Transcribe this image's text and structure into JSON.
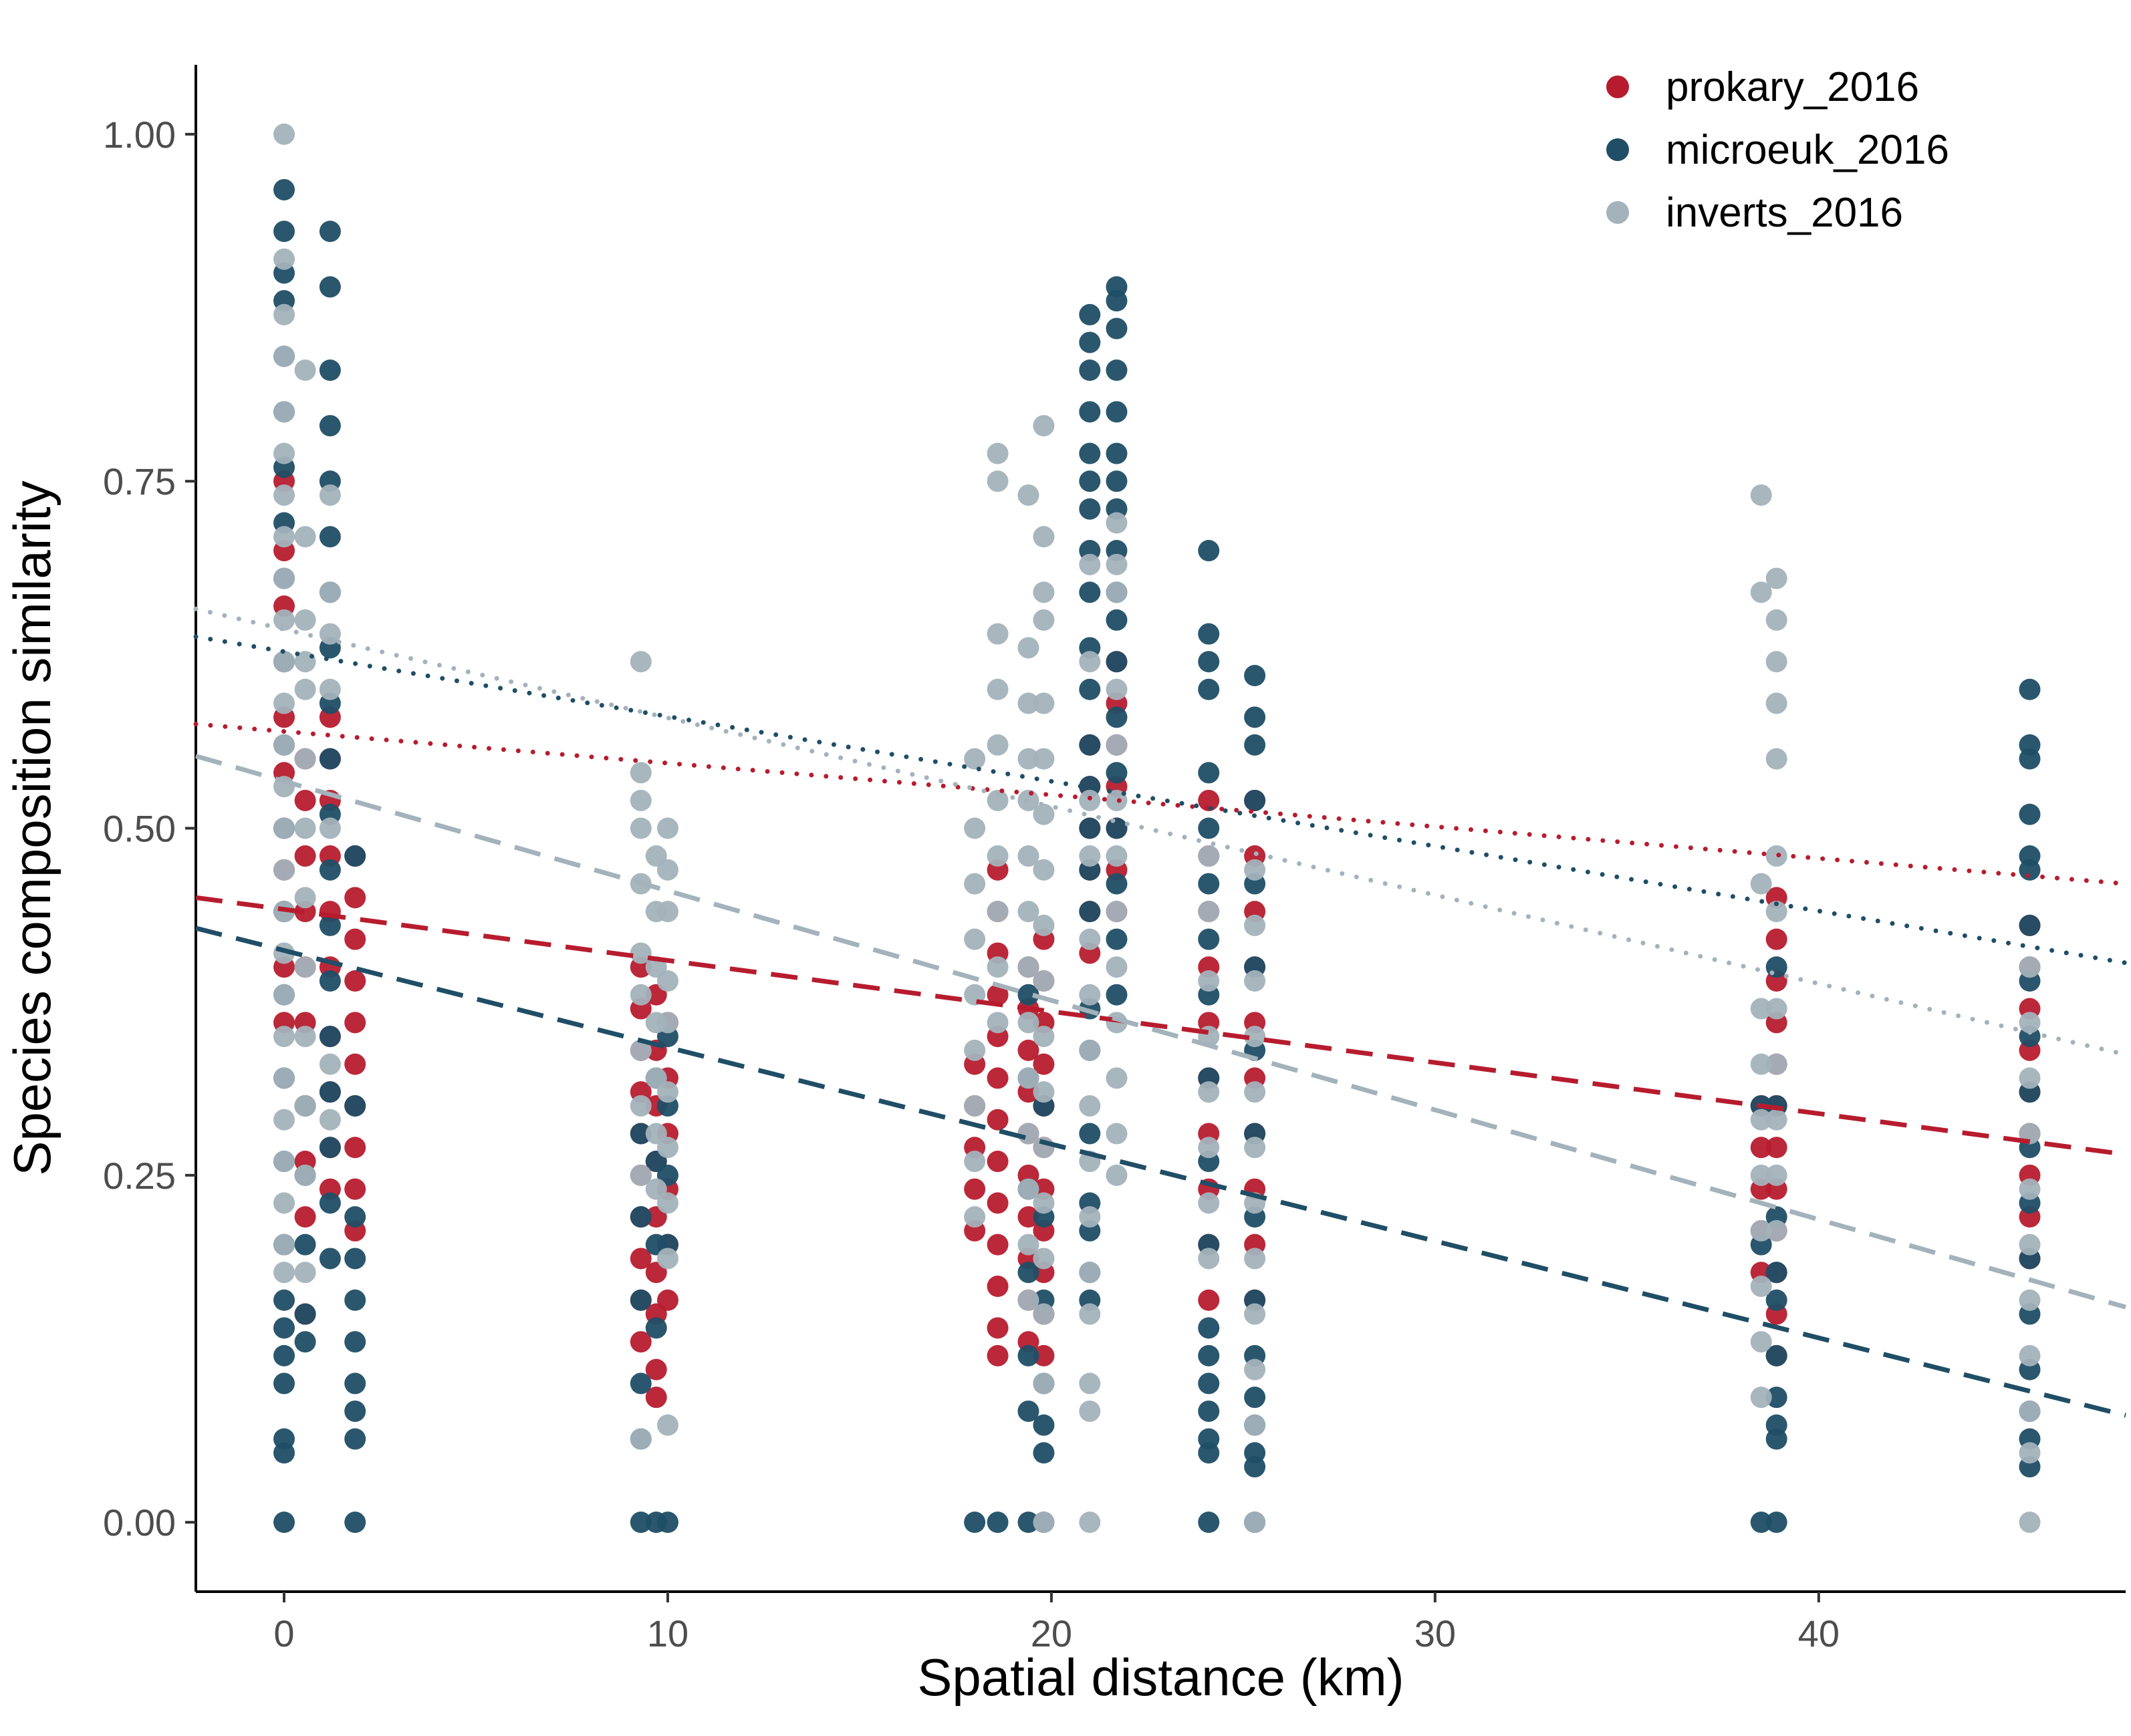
{
  "chart_data": {
    "type": "scatter",
    "title": "",
    "xlabel": "Spatial distance (km)",
    "ylabel": "Species composition similarity",
    "xlim": [
      -2.3,
      48
    ],
    "ylim": [
      -0.05,
      1.05
    ],
    "xticks": [
      0,
      10,
      20,
      30,
      40
    ],
    "xtick_labels": [
      "0",
      "10",
      "20",
      "30",
      "40"
    ],
    "yticks": [
      0,
      0.25,
      0.5,
      0.75,
      1.0
    ],
    "ytick_labels": [
      "0.00",
      "0.25",
      "0.50",
      "0.75",
      "1.00"
    ],
    "grid": false,
    "legend_position": "top-right",
    "series": [
      {
        "name": "prokary_2016",
        "color": "#b71c2e",
        "points": [
          {
            "x": 0,
            "y": [
              0.75,
              0.7,
              0.66,
              0.62,
              0.58,
              0.54,
              0.5,
              0.47,
              0.44,
              0.4,
              0.36
            ]
          },
          {
            "x": 0.55,
            "y": [
              0.55,
              0.52,
              0.48,
              0.44,
              0.4,
              0.36,
              0.3,
              0.26,
              0.22,
              0.15
            ]
          },
          {
            "x": 1.2,
            "y": [
              0.58,
              0.55,
              0.52,
              0.48,
              0.44,
              0.4,
              0.35,
              0.31,
              0.27,
              0.24
            ]
          },
          {
            "x": 1.85,
            "y": [
              0.48,
              0.45,
              0.42,
              0.39,
              0.36,
              0.33,
              0.3,
              0.27,
              0.24,
              0.21
            ]
          },
          {
            "x": 9.3,
            "y": [
              0.4,
              0.37,
              0.34,
              0.31,
              0.28,
              0.25,
              0.22,
              0.19,
              0.16,
              0.13
            ]
          },
          {
            "x": 9.7,
            "y": [
              0.38,
              0.34,
              0.3,
              0.26,
              0.22,
              0.18,
              0.15,
              0.11,
              0.09
            ]
          },
          {
            "x": 10.0,
            "y": [
              0.36,
              0.32,
              0.28,
              0.24,
              0.2,
              0.16
            ]
          },
          {
            "x": 18.0,
            "y": [
              0.33,
              0.3,
              0.27,
              0.24,
              0.21
            ]
          },
          {
            "x": 18.6,
            "y": [
              0.47,
              0.44,
              0.41,
              0.38,
              0.35,
              0.32,
              0.29,
              0.26,
              0.23,
              0.2,
              0.17,
              0.14,
              0.12
            ]
          },
          {
            "x": 19.4,
            "y": [
              0.4,
              0.37,
              0.34,
              0.31,
              0.28,
              0.25,
              0.22,
              0.19,
              0.16,
              0.13
            ]
          },
          {
            "x": 19.8,
            "y": [
              0.42,
              0.39,
              0.36,
              0.33,
              0.3,
              0.27,
              0.24,
              0.21,
              0.18,
              0.15,
              0.12
            ]
          },
          {
            "x": 21.0,
            "y": [
              0.56,
              0.53,
              0.5,
              0.47,
              0.44,
              0.41
            ]
          },
          {
            "x": 21.7,
            "y": [
              0.62,
              0.59,
              0.56,
              0.53,
              0.5,
              0.47,
              0.44
            ]
          },
          {
            "x": 24.1,
            "y": [
              0.52,
              0.48,
              0.44,
              0.4,
              0.36,
              0.32,
              0.28,
              0.24,
              0.2,
              0.16
            ]
          },
          {
            "x": 25.3,
            "y": [
              0.52,
              0.48,
              0.44,
              0.4,
              0.36,
              0.32,
              0.28,
              0.24,
              0.2,
              0.16
            ]
          },
          {
            "x": 38.5,
            "y": [
              0.3,
              0.27,
              0.24,
              0.21,
              0.18
            ]
          },
          {
            "x": 38.9,
            "y": [
              0.45,
              0.42,
              0.39,
              0.36,
              0.33,
              0.3,
              0.27,
              0.24,
              0.21,
              0.18,
              0.15,
              0.12
            ]
          },
          {
            "x": 45.5,
            "y": [
              0.43,
              0.4,
              0.37,
              0.34,
              0.31,
              0.28,
              0.25,
              0.22,
              0.19
            ]
          }
        ],
        "trendlines": [
          {
            "style": "dashed",
            "from": [
              -2.3,
              0.45
            ],
            "to": [
              48,
              0.265
            ]
          },
          {
            "style": "dotted",
            "from": [
              -2.3,
              0.575
            ],
            "to": [
              48,
              0.46
            ]
          }
        ]
      },
      {
        "name": "microeuk_2016",
        "color": "#1f4e66",
        "points": [
          {
            "x": 0,
            "y": [
              0.96,
              0.93,
              0.9,
              0.88,
              0.84,
              0.8,
              0.76,
              0.72,
              0.68,
              0.62,
              0.56,
              0.5,
              0.44,
              0.38,
              0.32,
              0.26,
              0.2,
              0.16,
              0.14,
              0.12,
              0.1,
              0.06,
              0.05,
              0.0
            ]
          },
          {
            "x": 0.55,
            "y": [
              0.3,
              0.25,
              0.2,
              0.15,
              0.13
            ]
          },
          {
            "x": 1.2,
            "y": [
              0.93,
              0.89,
              0.83,
              0.79,
              0.75,
              0.71,
              0.67,
              0.63,
              0.59,
              0.55,
              0.51,
              0.47,
              0.43,
              0.39,
              0.35,
              0.31,
              0.27,
              0.23,
              0.19
            ]
          },
          {
            "x": 1.85,
            "y": [
              0.48,
              0.3,
              0.22,
              0.19,
              0.16,
              0.13,
              0.1,
              0.08,
              0.06,
              0.0
            ]
          },
          {
            "x": 9.3,
            "y": [
              0.28,
              0.22,
              0.16,
              0.1,
              0.06,
              0.0
            ]
          },
          {
            "x": 9.7,
            "y": [
              0.32,
              0.26,
              0.2,
              0.14,
              0.0
            ]
          },
          {
            "x": 10.0,
            "y": [
              0.35,
              0.3,
              0.25,
              0.2,
              0.0
            ]
          },
          {
            "x": 18.0,
            "y": [
              0.0
            ]
          },
          {
            "x": 18.6,
            "y": [
              0.0
            ]
          },
          {
            "x": 19.4,
            "y": [
              0.38,
              0.32,
              0.24,
              0.18,
              0.12,
              0.08,
              0.0
            ]
          },
          {
            "x": 19.8,
            "y": [
              0.3,
              0.22,
              0.16,
              0.1,
              0.07,
              0.05,
              0.0
            ]
          },
          {
            "x": 21.0,
            "y": [
              0.87,
              0.85,
              0.83,
              0.8,
              0.77,
              0.75,
              0.73,
              0.7,
              0.67,
              0.63,
              0.6,
              0.56,
              0.53,
              0.5,
              0.47,
              0.44,
              0.37,
              0.34,
              0.28,
              0.23,
              0.21,
              0.18,
              0.16
            ]
          },
          {
            "x": 21.7,
            "y": [
              0.89,
              0.88,
              0.86,
              0.83,
              0.8,
              0.77,
              0.75,
              0.73,
              0.7,
              0.67,
              0.65,
              0.62,
              0.58,
              0.54,
              0.5,
              0.46,
              0.42,
              0.38
            ]
          },
          {
            "x": 24.1,
            "y": [
              0.7,
              0.64,
              0.62,
              0.6,
              0.54,
              0.5,
              0.46,
              0.42,
              0.38,
              0.32,
              0.26,
              0.2,
              0.14,
              0.12,
              0.1,
              0.08,
              0.06,
              0.05,
              0.0
            ]
          },
          {
            "x": 25.3,
            "y": [
              0.61,
              0.58,
              0.56,
              0.52,
              0.46,
              0.4,
              0.34,
              0.28,
              0.22,
              0.16,
              0.12,
              0.09,
              0.07,
              0.05,
              0.04,
              0.0
            ]
          },
          {
            "x": 38.5,
            "y": [
              0.3,
              0.2,
              0.0
            ]
          },
          {
            "x": 38.9,
            "y": [
              0.4,
              0.3,
              0.22,
              0.18,
              0.16,
              0.12,
              0.09,
              0.07,
              0.06,
              0.0
            ]
          },
          {
            "x": 45.5,
            "y": [
              0.6,
              0.56,
              0.55,
              0.51,
              0.48,
              0.47,
              0.43,
              0.39,
              0.35,
              0.31,
              0.27,
              0.23,
              0.19,
              0.15,
              0.11,
              0.08,
              0.06,
              0.04
            ]
          }
        ],
        "trendlines": [
          {
            "style": "dashed",
            "from": [
              -2.3,
              0.428
            ],
            "to": [
              48,
              0.077
            ]
          },
          {
            "style": "dotted",
            "from": [
              -2.3,
              0.638
            ],
            "to": [
              48,
              0.403
            ]
          }
        ]
      },
      {
        "name": "inverts_2016",
        "color": "#a3b2bb",
        "points": [
          {
            "x": 0,
            "y": [
              1.0,
              0.91,
              0.87,
              0.84,
              0.8,
              0.77,
              0.74,
              0.71,
              0.68,
              0.65,
              0.62,
              0.59,
              0.56,
              0.53,
              0.5,
              0.47,
              0.44,
              0.41,
              0.38,
              0.35,
              0.32,
              0.29,
              0.26,
              0.23,
              0.2,
              0.18
            ]
          },
          {
            "x": 0.55,
            "y": [
              0.83,
              0.71,
              0.65,
              0.62,
              0.6,
              0.55,
              0.5,
              0.45,
              0.4,
              0.35,
              0.3,
              0.25,
              0.18
            ]
          },
          {
            "x": 1.2,
            "y": [
              0.74,
              0.67,
              0.64,
              0.6,
              0.5,
              0.33,
              0.29
            ]
          },
          {
            "x": 9.3,
            "y": [
              0.62,
              0.54,
              0.52,
              0.5,
              0.46,
              0.41,
              0.38,
              0.34,
              0.3,
              0.25,
              0.06
            ]
          },
          {
            "x": 9.7,
            "y": [
              0.48,
              0.44,
              0.4,
              0.36,
              0.32,
              0.28,
              0.24
            ]
          },
          {
            "x": 10.0,
            "y": [
              0.5,
              0.47,
              0.44,
              0.39,
              0.36,
              0.31,
              0.27,
              0.23,
              0.19,
              0.07
            ]
          },
          {
            "x": 18.0,
            "y": [
              0.55,
              0.5,
              0.46,
              0.42,
              0.38,
              0.34,
              0.3,
              0.26,
              0.22
            ]
          },
          {
            "x": 18.6,
            "y": [
              0.77,
              0.75,
              0.64,
              0.6,
              0.56,
              0.52,
              0.48,
              0.44,
              0.4,
              0.36
            ]
          },
          {
            "x": 19.4,
            "y": [
              0.74,
              0.63,
              0.59,
              0.55,
              0.52,
              0.48,
              0.44,
              0.4,
              0.36,
              0.32,
              0.28,
              0.24,
              0.2,
              0.16
            ]
          },
          {
            "x": 19.8,
            "y": [
              0.79,
              0.71,
              0.67,
              0.65,
              0.59,
              0.55,
              0.51,
              0.47,
              0.43,
              0.39,
              0.35,
              0.31,
              0.27,
              0.23,
              0.19,
              0.15,
              0.1,
              0.0
            ]
          },
          {
            "x": 21.0,
            "y": [
              0.69,
              0.62,
              0.52,
              0.48,
              0.42,
              0.38,
              0.34,
              0.3,
              0.26,
              0.22,
              0.18,
              0.15,
              0.1,
              0.08,
              0.0
            ]
          },
          {
            "x": 21.7,
            "y": [
              0.72,
              0.69,
              0.67,
              0.6,
              0.56,
              0.52,
              0.48,
              0.44,
              0.4,
              0.36,
              0.32,
              0.28,
              0.25
            ]
          },
          {
            "x": 24.1,
            "y": [
              0.48,
              0.44,
              0.39,
              0.35,
              0.31,
              0.27,
              0.23,
              0.19
            ]
          },
          {
            "x": 25.3,
            "y": [
              0.47,
              0.43,
              0.39,
              0.35,
              0.31,
              0.27,
              0.23,
              0.19,
              0.15,
              0.11,
              0.07,
              0.0
            ]
          },
          {
            "x": 38.5,
            "y": [
              0.74,
              0.67,
              0.46,
              0.37,
              0.33,
              0.29,
              0.25,
              0.21,
              0.17,
              0.13,
              0.09
            ]
          },
          {
            "x": 38.9,
            "y": [
              0.68,
              0.65,
              0.62,
              0.59,
              0.55,
              0.48,
              0.44,
              0.37,
              0.33,
              0.29,
              0.25,
              0.21
            ]
          },
          {
            "x": 45.5,
            "y": [
              0.4,
              0.36,
              0.32,
              0.28,
              0.24,
              0.2,
              0.16,
              0.12,
              0.08,
              0.05,
              0.0
            ]
          }
        ],
        "trendlines": [
          {
            "style": "dashed",
            "from": [
              -2.3,
              0.552
            ],
            "to": [
              48,
              0.155
            ]
          },
          {
            "style": "dotted",
            "from": [
              -2.3,
              0.658
            ],
            "to": [
              48,
              0.337
            ]
          }
        ]
      }
    ]
  }
}
